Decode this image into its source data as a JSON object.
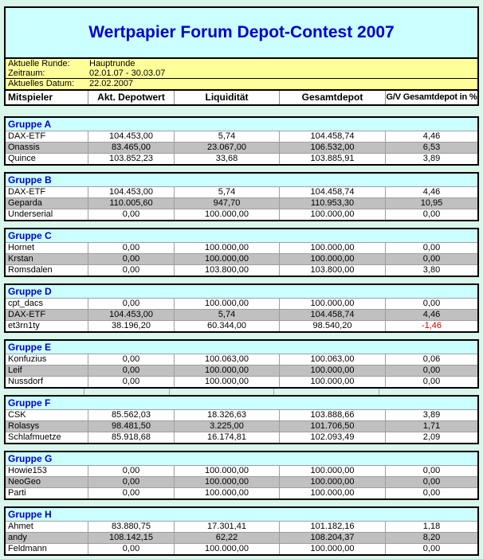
{
  "title": "Wertpapier Forum Depot-Contest 2007",
  "info": {
    "rows": [
      {
        "label": "Aktuelle Runde:",
        "value": "Hauptrunde"
      },
      {
        "label": "Zeitraum:",
        "value": "02.01.07 - 30.03.07"
      },
      {
        "label": "Aktuelles Datum:",
        "value": "22.02.2007"
      }
    ]
  },
  "table": {
    "columns": [
      "Mitspieler",
      "Akt. Depotwert",
      "Liquidität",
      "Gesamtdepot",
      "G/V Gesamtdepot in %"
    ]
  },
  "groups": [
    {
      "name": "Gruppe A",
      "rows": [
        {
          "player": "DAX-ETF",
          "depotwert": "104.453,00",
          "liquiditaet": "5,74",
          "gesamtdepot": "104.458,74",
          "gv": "4,46",
          "gv_negative": false
        },
        {
          "player": "Onassis",
          "depotwert": "83.465,00",
          "liquiditaet": "23.067,00",
          "gesamtdepot": "106.532,00",
          "gv": "6,53",
          "gv_negative": false
        },
        {
          "player": "Quince",
          "depotwert": "103.852,23",
          "liquiditaet": "33,68",
          "gesamtdepot": "103.885,91",
          "gv": "3,89",
          "gv_negative": false
        }
      ]
    },
    {
      "name": "Gruppe B",
      "rows": [
        {
          "player": "DAX-ETF",
          "depotwert": "104.453,00",
          "liquiditaet": "5,74",
          "gesamtdepot": "104.458,74",
          "gv": "4,46",
          "gv_negative": false
        },
        {
          "player": "Geparda",
          "depotwert": "110.005,60",
          "liquiditaet": "947,70",
          "gesamtdepot": "110.953,30",
          "gv": "10,95",
          "gv_negative": false
        },
        {
          "player": "Underserial",
          "depotwert": "0,00",
          "liquiditaet": "100.000,00",
          "gesamtdepot": "100.000,00",
          "gv": "0,00",
          "gv_negative": false
        }
      ]
    },
    {
      "name": "Gruppe C",
      "rows": [
        {
          "player": "Hornet",
          "depotwert": "0,00",
          "liquiditaet": "100.000,00",
          "gesamtdepot": "100.000,00",
          "gv": "0,00",
          "gv_negative": false
        },
        {
          "player": "Krstan",
          "depotwert": "0,00",
          "liquiditaet": "100.000,00",
          "gesamtdepot": "100.000,00",
          "gv": "0,00",
          "gv_negative": false
        },
        {
          "player": "Romsdalen",
          "depotwert": "0,00",
          "liquiditaet": "103.800,00",
          "gesamtdepot": "103.800,00",
          "gv": "3,80",
          "gv_negative": false
        }
      ]
    },
    {
      "name": "Gruppe D",
      "rows": [
        {
          "player": "cpt_dacs",
          "depotwert": "0,00",
          "liquiditaet": "100.000,00",
          "gesamtdepot": "100.000,00",
          "gv": "0,00",
          "gv_negative": false
        },
        {
          "player": "DAX-ETF",
          "depotwert": "104.453,00",
          "liquiditaet": "5,74",
          "gesamtdepot": "104.458,74",
          "gv": "4,46",
          "gv_negative": false
        },
        {
          "player": "et3rn1ty",
          "depotwert": "38.196,20",
          "liquiditaet": "60.344,00",
          "gesamtdepot": "98.540,20",
          "gv": "-1,46",
          "gv_negative": true
        }
      ]
    },
    {
      "name": "Gruppe E",
      "rows": [
        {
          "player": "Konfuzius",
          "depotwert": "0,00",
          "liquiditaet": "100.063,00",
          "gesamtdepot": "100.063,00",
          "gv": "0,06",
          "gv_negative": false
        },
        {
          "player": "Leif",
          "depotwert": "0,00",
          "liquiditaet": "100.000,00",
          "gesamtdepot": "100.000,00",
          "gv": "0,00",
          "gv_negative": false
        },
        {
          "player": "Nussdorf",
          "depotwert": "0,00",
          "liquiditaet": "100.000,00",
          "gesamtdepot": "100.000,00",
          "gv": "0,00",
          "gv_negative": false
        }
      ]
    },
    {
      "name": "Gruppe F",
      "gap_lined": true,
      "rows": [
        {
          "player": "CSK",
          "depotwert": "85.562,03",
          "liquiditaet": "18.326,63",
          "gesamtdepot": "103.888,66",
          "gv": "3,89",
          "gv_negative": false
        },
        {
          "player": "Rolasys",
          "depotwert": "98.481,50",
          "liquiditaet": "3.225,00",
          "gesamtdepot": "101.706,50",
          "gv": "1,71",
          "gv_negative": false
        },
        {
          "player": "Schlafmuetze",
          "depotwert": "85.918,68",
          "liquiditaet": "16.174,81",
          "gesamtdepot": "102.093,49",
          "gv": "2,09",
          "gv_negative": false
        }
      ]
    },
    {
      "name": "Gruppe G",
      "rows": [
        {
          "player": "Howie153",
          "depotwert": "0,00",
          "liquiditaet": "100.000,00",
          "gesamtdepot": "100.000,00",
          "gv": "0,00",
          "gv_negative": false
        },
        {
          "player": "NeoGeo",
          "depotwert": "0,00",
          "liquiditaet": "100.000,00",
          "gesamtdepot": "100.000,00",
          "gv": "0,00",
          "gv_negative": false
        },
        {
          "player": "Parti",
          "depotwert": "0,00",
          "liquiditaet": "100.000,00",
          "gesamtdepot": "100.000,00",
          "gv": "0,00",
          "gv_negative": false
        }
      ]
    },
    {
      "name": "Gruppe H",
      "rows": [
        {
          "player": "Ahmet",
          "depotwert": "83.880,75",
          "liquiditaet": "17.301,41",
          "gesamtdepot": "101.182,16",
          "gv": "1,18",
          "gv_negative": false
        },
        {
          "player": "andy",
          "depotwert": "108.142,15",
          "liquiditaet": "62,22",
          "gesamtdepot": "108.204,37",
          "gv": "8,20",
          "gv_negative": false
        },
        {
          "player": "Feldmann",
          "depotwert": "0,00",
          "liquiditaet": "100.000,00",
          "gesamtdepot": "100.000,00",
          "gv": "0,00",
          "gv_negative": false
        }
      ]
    }
  ],
  "colors": {
    "page_bg": "#d9f7ea",
    "panel_cyan": "#ccffff",
    "info_yellow": "#ffff99",
    "row_gray": "#c0c0c0",
    "title_blue": "#0000cc",
    "negative_red": "#cc0000",
    "border_black": "#000000",
    "grid_gray": "#9e9e9e"
  }
}
